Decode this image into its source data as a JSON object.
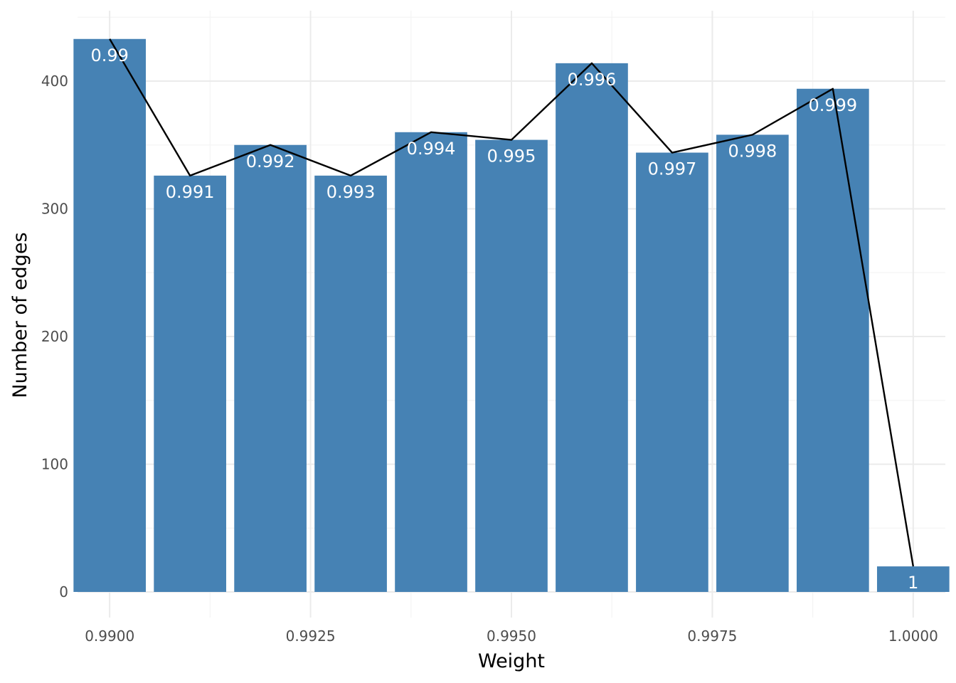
{
  "chart_data": {
    "type": "bar",
    "xlabel": "Weight",
    "ylabel": "Number of edges",
    "x": [
      0.99,
      0.991,
      0.992,
      0.993,
      0.994,
      0.995,
      0.996,
      0.997,
      0.998,
      0.999,
      1.0
    ],
    "values": [
      433,
      326,
      350,
      326,
      360,
      354,
      414,
      344,
      358,
      394,
      20
    ],
    "bar_labels": [
      "0.99",
      "0.991",
      "0.992",
      "0.993",
      "0.994",
      "0.995",
      "0.996",
      "0.997",
      "0.998",
      "0.999",
      "1"
    ],
    "xlim": [
      0.9896,
      1.0004
    ],
    "ylim": [
      0,
      450
    ],
    "x_ticks": [
      0.99,
      0.9925,
      0.995,
      0.9975,
      1.0
    ],
    "x_tick_labels": [
      "0.9900",
      "0.9925",
      "0.9950",
      "0.9975",
      "1.0000"
    ],
    "y_ticks": [
      0,
      100,
      200,
      300,
      400
    ],
    "y_tick_labels": [
      "0",
      "100",
      "200",
      "300",
      "400"
    ],
    "overlay_line": true,
    "bar_color": "#4682b4",
    "line_color": "#000000",
    "grid": true,
    "legend": "none"
  }
}
